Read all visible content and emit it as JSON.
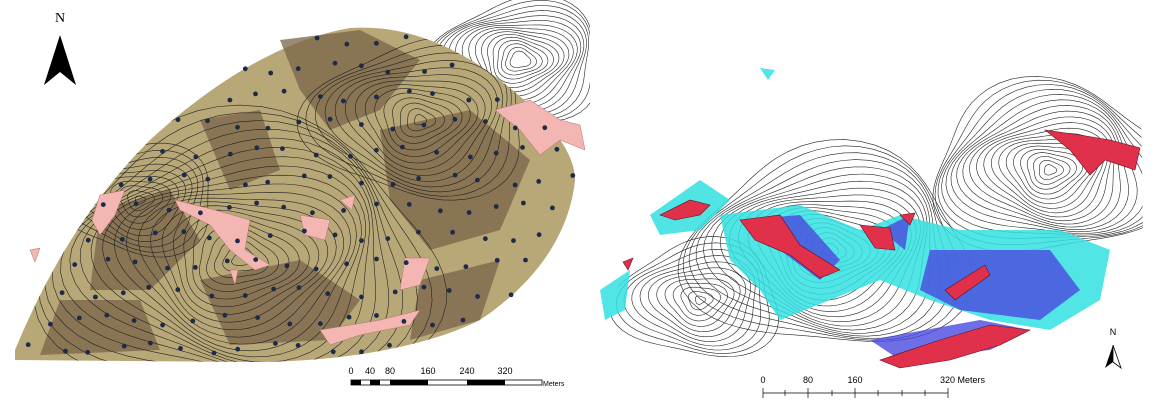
{
  "left_map": {
    "north_label": "N",
    "scale_labels": [
      "0",
      "40",
      "80",
      "160",
      "240",
      "320"
    ],
    "scale_unit": "Meters"
  },
  "right_map": {
    "north_label": "N",
    "scale_labels": [
      "0",
      "80",
      "160",
      "320 Meters"
    ]
  }
}
